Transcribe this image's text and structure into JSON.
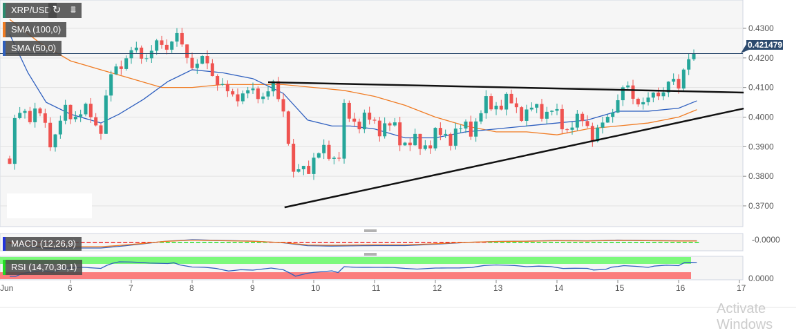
{
  "symbol": "XRP/USD",
  "toolbar": {
    "refresh_icon": "refresh-icon",
    "chart_icon": "bar-chart-icon"
  },
  "indicators": {
    "sma100": "SMA (100,0)",
    "sma50": "SMA (50,0)",
    "macd": "MACD (12,26,9)",
    "rsi": "RSI (14,70,30,1)"
  },
  "colors": {
    "up": "#26a69a",
    "down": "#ef5350",
    "sma100": "#f07b22",
    "sma50": "#2e5fbf",
    "price_tag": "#2c4a6e"
  },
  "watermark": "Activate Windows",
  "chart_data": {
    "type": "candlestick",
    "month_label": "Jun",
    "x_ticks": [
      "6",
      "7",
      "8",
      "9",
      "10",
      "11",
      "12",
      "13",
      "14",
      "15",
      "16",
      "17"
    ],
    "y_ticks": [
      "0.4300",
      "0.4200",
      "0.4100",
      "0.4000",
      "0.3900",
      "0.3800",
      "0.3700"
    ],
    "ylim": [
      0.3635,
      0.4395
    ],
    "current_price": "0.421479",
    "macd_tick": "-0.0000",
    "rsi_tick": "0.0000",
    "price_path": [
      [
        5.0,
        0.386
      ],
      [
        5.1,
        0.398
      ],
      [
        5.2,
        0.403
      ],
      [
        5.5,
        0.4
      ],
      [
        5.7,
        0.392
      ],
      [
        5.9,
        0.401
      ],
      [
        6.2,
        0.402
      ],
      [
        6.5,
        0.397
      ],
      [
        6.65,
        0.412
      ],
      [
        6.8,
        0.419
      ],
      [
        7.0,
        0.421
      ],
      [
        7.3,
        0.422
      ],
      [
        7.6,
        0.425
      ],
      [
        7.72,
        0.429
      ],
      [
        7.8,
        0.423
      ],
      [
        8.0,
        0.419
      ],
      [
        8.2,
        0.418
      ],
      [
        8.4,
        0.414
      ],
      [
        8.6,
        0.406
      ],
      [
        8.8,
        0.409
      ],
      [
        9.0,
        0.407
      ],
      [
        9.3,
        0.41
      ],
      [
        9.5,
        0.403
      ],
      [
        9.6,
        0.392
      ],
      [
        9.65,
        0.379
      ],
      [
        9.8,
        0.382
      ],
      [
        10.0,
        0.386
      ],
      [
        10.3,
        0.389
      ],
      [
        10.4,
        0.384
      ],
      [
        10.5,
        0.401
      ],
      [
        10.7,
        0.399
      ],
      [
        11.0,
        0.398
      ],
      [
        11.3,
        0.396
      ],
      [
        11.5,
        0.392
      ],
      [
        11.7,
        0.39
      ],
      [
        12.0,
        0.393
      ],
      [
        12.2,
        0.394
      ],
      [
        12.4,
        0.395
      ],
      [
        12.6,
        0.397
      ],
      [
        12.8,
        0.403
      ],
      [
        13.0,
        0.405
      ],
      [
        13.3,
        0.404
      ],
      [
        13.5,
        0.401
      ],
      [
        13.7,
        0.403
      ],
      [
        13.9,
        0.402
      ],
      [
        14.1,
        0.397
      ],
      [
        14.3,
        0.398
      ],
      [
        14.5,
        0.398
      ],
      [
        14.6,
        0.394
      ],
      [
        14.8,
        0.397
      ],
      [
        14.9,
        0.404
      ],
      [
        15.1,
        0.409
      ],
      [
        15.3,
        0.407
      ],
      [
        15.5,
        0.404
      ],
      [
        15.6,
        0.408
      ],
      [
        15.8,
        0.411
      ],
      [
        16.0,
        0.41
      ],
      [
        16.1,
        0.42
      ],
      [
        16.25,
        0.4215
      ]
    ],
    "sma50": [
      [
        5.0,
        0.428
      ],
      [
        5.3,
        0.415
      ],
      [
        5.6,
        0.405
      ],
      [
        6.0,
        0.401
      ],
      [
        6.5,
        0.398
      ],
      [
        6.8,
        0.401
      ],
      [
        7.2,
        0.406
      ],
      [
        7.6,
        0.412
      ],
      [
        8.0,
        0.416
      ],
      [
        8.5,
        0.415
      ],
      [
        9.0,
        0.413
      ],
      [
        9.5,
        0.408
      ],
      [
        9.9,
        0.399
      ],
      [
        10.3,
        0.397
      ],
      [
        10.6,
        0.397
      ],
      [
        11.0,
        0.396
      ],
      [
        11.5,
        0.393
      ],
      [
        12.0,
        0.393
      ],
      [
        12.5,
        0.395
      ],
      [
        13.0,
        0.396
      ],
      [
        13.5,
        0.397
      ],
      [
        14.0,
        0.398
      ],
      [
        14.5,
        0.399
      ],
      [
        15.0,
        0.402
      ],
      [
        15.5,
        0.402
      ],
      [
        16.0,
        0.403
      ],
      [
        16.3,
        0.4055
      ]
    ],
    "sma100": [
      [
        5.0,
        0.433
      ],
      [
        5.5,
        0.425
      ],
      [
        6.0,
        0.419
      ],
      [
        6.5,
        0.416
      ],
      [
        7.0,
        0.413
      ],
      [
        7.5,
        0.41
      ],
      [
        8.0,
        0.41
      ],
      [
        8.5,
        0.411
      ],
      [
        9.0,
        0.411
      ],
      [
        9.5,
        0.411
      ],
      [
        10.0,
        0.41
      ],
      [
        10.5,
        0.409
      ],
      [
        11.0,
        0.407
      ],
      [
        11.5,
        0.404
      ],
      [
        12.0,
        0.4
      ],
      [
        12.5,
        0.397
      ],
      [
        13.0,
        0.395
      ],
      [
        13.5,
        0.395
      ],
      [
        14.0,
        0.394
      ],
      [
        14.5,
        0.396
      ],
      [
        15.0,
        0.397
      ],
      [
        15.5,
        0.398
      ],
      [
        16.0,
        0.4
      ],
      [
        16.3,
        0.4025
      ]
    ],
    "trendlines": [
      {
        "from": [
          9.25,
          0.4118
        ],
        "to": [
          17.07,
          0.4083
        ]
      },
      {
        "from": [
          9.52,
          0.3695
        ],
        "to": [
          17.07,
          0.4029
        ]
      }
    ]
  }
}
